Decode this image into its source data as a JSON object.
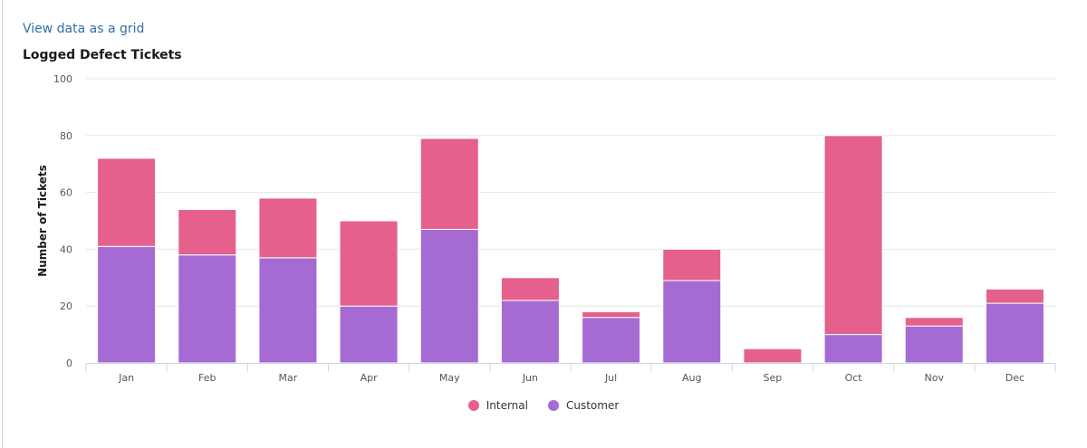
{
  "links": {
    "view_grid": "View data as a grid"
  },
  "chart_data": {
    "type": "bar",
    "stacked": true,
    "title": "Logged Defect Tickets",
    "xlabel": "",
    "ylabel": "Number of Tickets",
    "ylim": [
      0,
      100
    ],
    "yticks": [
      0,
      20,
      40,
      60,
      80,
      100
    ],
    "grid": true,
    "legend_position": "bottom",
    "categories": [
      "Jan",
      "Feb",
      "Mar",
      "Apr",
      "May",
      "Jun",
      "Jul",
      "Aug",
      "Sep",
      "Oct",
      "Nov",
      "Dec"
    ],
    "series": [
      {
        "name": "Customer",
        "color": "#A66BD3",
        "values": [
          41,
          38,
          37,
          20,
          47,
          22,
          16,
          29,
          0,
          10,
          13,
          21
        ]
      },
      {
        "name": "Internal",
        "color": "#E5608C",
        "values": [
          31,
          16,
          21,
          30,
          32,
          8,
          2,
          11,
          5,
          70,
          3,
          5
        ]
      }
    ]
  },
  "legend": [
    {
      "label": "Internal",
      "color": "#E5608C"
    },
    {
      "label": "Customer",
      "color": "#A66BD3"
    }
  ]
}
